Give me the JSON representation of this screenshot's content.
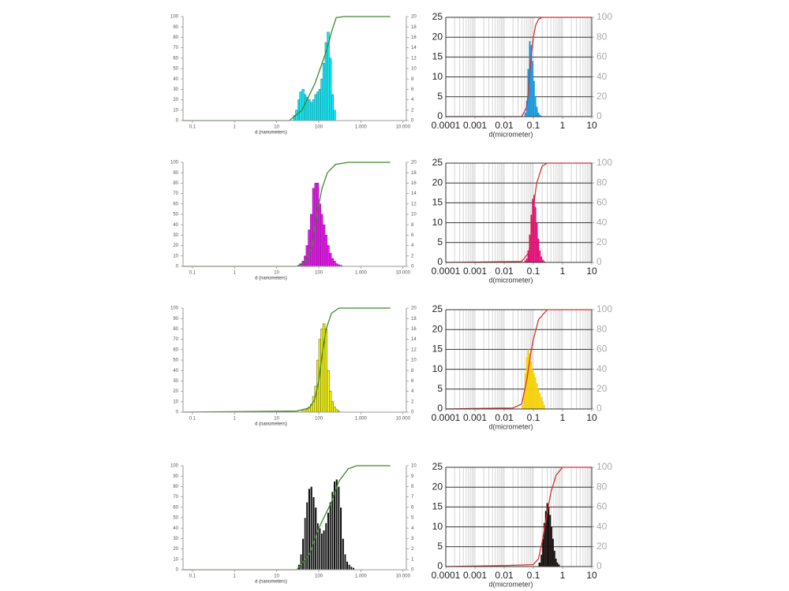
{
  "chart_data": [
    {
      "type": "histogram",
      "xlabel": "d (nanometers)",
      "xscale": "log",
      "grid": false,
      "xlim": [
        0.06,
        12000
      ],
      "xticks": [
        0.1,
        1,
        10,
        100,
        {
          "value": 1000,
          "label": "1.000"
        },
        {
          "value": 10000,
          "label": "10.000"
        }
      ],
      "ylim": [
        0,
        100
      ],
      "yticks": [
        0,
        10,
        20,
        30,
        40,
        50,
        60,
        70,
        80,
        90,
        100
      ],
      "y2lim": [
        0,
        20
      ],
      "y2ticks": [
        0,
        2,
        4,
        6,
        8,
        10,
        12,
        14,
        16,
        18,
        20
      ],
      "bins": [
        25,
        28,
        32,
        35,
        40,
        45,
        50,
        56,
        63,
        71,
        80,
        90,
        100,
        112,
        125,
        141,
        158,
        178,
        200,
        224,
        251
      ],
      "histogram": {
        "axis": "y2",
        "color": "#1de3ef",
        "edgecolor": "#12909a",
        "counts": [
          1,
          2,
          4,
          5.5,
          6,
          5,
          4.5,
          4,
          3.5,
          4,
          5,
          5.5,
          6,
          8,
          11,
          15,
          17,
          12,
          5,
          2
        ]
      },
      "cumulative": {
        "axis": "y",
        "color": "#3a8a2a",
        "x": [
          0.06,
          20,
          40,
          80,
          120,
          160,
          200,
          260,
          400,
          5000
        ],
        "values": [
          0,
          0,
          10,
          35,
          55,
          70,
          85,
          99,
          100,
          100
        ]
      }
    },
    {
      "type": "histogram",
      "xlabel": "d(micrometer)",
      "xscale": "log",
      "grid": true,
      "xlim": [
        0.0001,
        10
      ],
      "xticks": [
        0.0001,
        0.001,
        0.01,
        0.1,
        1,
        10
      ],
      "ylim": [
        0,
        25
      ],
      "yticks": [
        0,
        5,
        10,
        15,
        20,
        25
      ],
      "y2lim": [
        0,
        100
      ],
      "y2ticks": [
        0,
        20,
        40,
        60,
        80,
        100
      ],
      "bins": [
        0.05,
        0.056,
        0.063,
        0.071,
        0.08,
        0.09,
        0.1,
        0.112,
        0.125,
        0.141,
        0.158,
        0.178,
        0.2
      ],
      "histogram": {
        "axis": "y",
        "color": "#1a9be0",
        "counts": [
          1,
          4,
          12,
          19,
          18,
          14,
          9,
          5,
          2.5,
          1,
          0.5,
          0.2
        ]
      },
      "cumulative": {
        "axis": "y2",
        "color": "#d8322e",
        "x": [
          0.0001,
          0.04,
          0.06,
          0.07,
          0.08,
          0.1,
          0.12,
          0.15,
          0.2,
          10
        ],
        "values": [
          0,
          0,
          10,
          30,
          55,
          80,
          92,
          98,
          100,
          100
        ]
      }
    },
    {
      "type": "histogram",
      "xlabel": "d (nanometers)",
      "xscale": "log",
      "grid": false,
      "xlim": [
        0.06,
        12000
      ],
      "xticks": [
        0.1,
        1,
        10,
        100,
        {
          "value": 1000,
          "label": "1.000"
        },
        {
          "value": 10000,
          "label": "10.000"
        }
      ],
      "ylim": [
        0,
        100
      ],
      "yticks": [
        0,
        10,
        20,
        30,
        40,
        50,
        60,
        70,
        80,
        90,
        100
      ],
      "y2lim": [
        0,
        20
      ],
      "y2ticks": [
        0,
        2,
        4,
        6,
        8,
        10,
        12,
        14,
        16,
        18,
        20
      ],
      "bins": [
        35,
        40,
        45,
        50,
        56,
        63,
        71,
        80,
        90,
        100,
        112,
        125,
        141,
        158,
        178,
        200,
        224,
        251,
        282,
        316,
        355
      ],
      "histogram": {
        "axis": "y2",
        "color": "#e21de8",
        "edgecolor": "#8a1090",
        "counts": [
          0.5,
          1,
          2,
          4,
          7,
          10,
          15,
          16,
          16,
          12,
          10,
          8,
          6,
          4,
          2.5,
          1.5,
          1,
          0.5,
          0.3,
          0.2
        ]
      },
      "cumulative": {
        "axis": "y",
        "color": "#3a8a2a",
        "x": [
          0.06,
          30,
          50,
          70,
          90,
          120,
          160,
          250,
          500,
          5000
        ],
        "values": [
          0,
          0,
          5,
          20,
          50,
          75,
          90,
          98,
          100,
          100
        ]
      }
    },
    {
      "type": "histogram",
      "xlabel": "d(micrometer)",
      "xscale": "log",
      "grid": true,
      "xlim": [
        0.0001,
        10
      ],
      "xticks": [
        0.0001,
        0.001,
        0.01,
        0.1,
        1,
        10
      ],
      "ylim": [
        0,
        25
      ],
      "yticks": [
        0,
        5,
        10,
        15,
        20,
        25
      ],
      "y2lim": [
        0,
        100
      ],
      "y2ticks": [
        0,
        20,
        40,
        60,
        80,
        100
      ],
      "bins": [
        0.05,
        0.056,
        0.063,
        0.071,
        0.08,
        0.09,
        0.1,
        0.112,
        0.125,
        0.141,
        0.158,
        0.178,
        0.2,
        0.224,
        0.251
      ],
      "histogram": {
        "axis": "y",
        "color": "#e0127a",
        "counts": [
          0.5,
          1,
          3,
          7,
          12,
          16,
          17,
          14,
          10,
          6,
          3,
          1.5,
          0.7,
          0.3
        ]
      },
      "cumulative": {
        "axis": "y2",
        "color": "#d8322e",
        "x": [
          0.0001,
          0.001,
          0.04,
          0.07,
          0.09,
          0.1,
          0.13,
          0.2,
          0.3,
          10
        ],
        "values": [
          0,
          0.3,
          1,
          10,
          35,
          55,
          80,
          97,
          100,
          100
        ]
      }
    },
    {
      "type": "histogram",
      "xlabel": "d (nanometers)",
      "xscale": "log",
      "grid": false,
      "xlim": [
        0.06,
        12000
      ],
      "xticks": [
        0.1,
        1,
        10,
        100,
        {
          "value": 1000,
          "label": "1.000"
        },
        {
          "value": 10000,
          "label": "10.000"
        }
      ],
      "ylim": [
        0,
        100
      ],
      "yticks": [
        0,
        10,
        20,
        30,
        40,
        50,
        60,
        70,
        80,
        90,
        100
      ],
      "y2lim": [
        0,
        20
      ],
      "y2ticks": [
        0,
        2,
        4,
        6,
        8,
        10,
        12,
        14,
        16,
        18,
        20
      ],
      "bins": [
        40,
        50,
        56,
        63,
        71,
        80,
        90,
        100,
        112,
        125,
        141,
        158,
        178,
        200,
        224,
        251,
        282,
        316
      ],
      "histogram": {
        "axis": "y2",
        "color": "#f2f21a",
        "edgecolor": "#6e6e10",
        "counts": [
          0.3,
          0.5,
          1,
          1.5,
          3,
          5,
          10,
          14,
          16,
          17,
          16,
          8,
          4,
          2,
          1,
          0.5,
          0.2
        ]
      },
      "cumulative": {
        "axis": "y",
        "color": "#3a8a2a",
        "x": [
          0.06,
          30,
          60,
          80,
          100,
          120,
          150,
          200,
          300,
          5000
        ],
        "values": [
          0,
          1,
          4,
          12,
          30,
          55,
          80,
          95,
          100,
          100
        ]
      }
    },
    {
      "type": "histogram",
      "xlabel": "d(micrometer)",
      "xscale": "log",
      "grid": true,
      "xlim": [
        0.0001,
        10
      ],
      "xticks": [
        0.0001,
        0.001,
        0.01,
        0.1,
        1,
        10
      ],
      "ylim": [
        0,
        25
      ],
      "yticks": [
        0,
        5,
        10,
        15,
        20,
        25
      ],
      "y2lim": [
        0,
        100
      ],
      "y2ticks": [
        0,
        20,
        40,
        60,
        80,
        100
      ],
      "bins": [
        0.04,
        0.045,
        0.05,
        0.056,
        0.063,
        0.071,
        0.08,
        0.09,
        0.1,
        0.112,
        0.125,
        0.141,
        0.158,
        0.178,
        0.2,
        0.224,
        0.251
      ],
      "histogram": {
        "axis": "y",
        "color": "#f5d20a",
        "counts": [
          1,
          4,
          9,
          13,
          15,
          14,
          12,
          10,
          9,
          8,
          6.5,
          5,
          4,
          3,
          2,
          1
        ]
      },
      "cumulative": {
        "axis": "y2",
        "color": "#d8322e",
        "x": [
          0.0001,
          0.001,
          0.02,
          0.04,
          0.06,
          0.08,
          0.1,
          0.15,
          0.3,
          10
        ],
        "values": [
          0,
          0.5,
          1,
          5,
          30,
          55,
          70,
          90,
          100,
          100
        ]
      }
    },
    {
      "type": "histogram",
      "xlabel": "d (nanometers)",
      "xscale": "log",
      "grid": false,
      "xlim": [
        0.06,
        12000
      ],
      "xticks": [
        0.1,
        1,
        10,
        100,
        {
          "value": 1000,
          "label": "1.000"
        },
        {
          "value": 10000,
          "label": "10.000"
        }
      ],
      "ylim": [
        0,
        100
      ],
      "yticks": [
        0,
        10,
        20,
        30,
        40,
        50,
        60,
        70,
        80,
        90,
        100
      ],
      "y2lim": [
        0,
        10
      ],
      "y2ticks": [
        0,
        1,
        2,
        3,
        4,
        5,
        6,
        7,
        8,
        9,
        10
      ],
      "bins": [
        32,
        36,
        40,
        45,
        50,
        56,
        63,
        71,
        80,
        90,
        100,
        112,
        125,
        141,
        158,
        178,
        200,
        224,
        251,
        282,
        316,
        355,
        400,
        447,
        501,
        562,
        631,
        708
      ],
      "histogram": {
        "axis": "y2",
        "color": "#111111",
        "edgecolor": "#ffffff",
        "counts": [
          0.5,
          1.5,
          3,
          5,
          6.5,
          7.8,
          8,
          7,
          6,
          4.5,
          4,
          3.5,
          3.8,
          4.5,
          5.5,
          6.5,
          7.5,
          8.5,
          8.7,
          8,
          6,
          3,
          1.5,
          0.8,
          0.5,
          0.3,
          0.2
        ]
      },
      "cumulative": {
        "axis": "y",
        "color": "#3a8a2a",
        "x": [
          0.06,
          30,
          60,
          100,
          200,
          300,
          500,
          800,
          5000
        ],
        "values": [
          0,
          0,
          15,
          40,
          65,
          85,
          97,
          100,
          100
        ]
      }
    },
    {
      "type": "histogram",
      "xlabel": "d(micrometer)",
      "xscale": "log",
      "grid": true,
      "xlim": [
        0.0001,
        10
      ],
      "xticks": [
        0.0001,
        0.001,
        0.01,
        0.1,
        1,
        10
      ],
      "ylim": [
        0,
        25
      ],
      "yticks": [
        0,
        5,
        10,
        15,
        20,
        25
      ],
      "y2lim": [
        0,
        100
      ],
      "y2ticks": [
        0,
        20,
        40,
        60,
        80,
        100
      ],
      "bins": [
        0.15,
        0.178,
        0.2,
        0.224,
        0.251,
        0.282,
        0.316,
        0.355,
        0.4,
        0.447,
        0.501,
        0.562,
        0.631,
        0.708,
        0.8
      ],
      "histogram": {
        "axis": "y",
        "color": "#1a1210",
        "counts": [
          1,
          3,
          7,
          11,
          14,
          16,
          15,
          13,
          10,
          7,
          4,
          2,
          1,
          0.5
        ]
      },
      "cumulative": {
        "axis": "y2",
        "color": "#d8322e",
        "x": [
          0.0001,
          0.01,
          0.1,
          0.15,
          0.2,
          0.3,
          0.4,
          0.6,
          1,
          10
        ],
        "values": [
          0,
          1,
          2,
          8,
          25,
          55,
          75,
          92,
          100,
          100
        ]
      }
    }
  ]
}
